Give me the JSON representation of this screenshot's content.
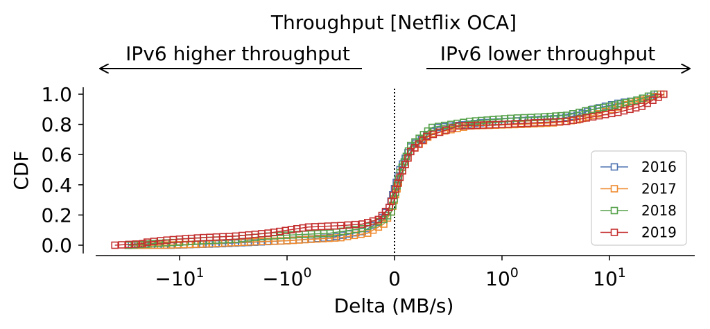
{
  "chart_data": {
    "type": "line",
    "title": "Throughput [Netflix OCA]",
    "xlabel": "Delta (MB/s)",
    "ylabel": "CDF",
    "xscale": "symlog",
    "xlim": [
      -40,
      40
    ],
    "ylim": [
      -0.03,
      1.05
    ],
    "x_ticks": [
      {
        "value": -10,
        "base": "−10",
        "exp": "1"
      },
      {
        "value": -1,
        "base": "−10",
        "exp": "0"
      },
      {
        "value": 0,
        "base": "0",
        "exp": ""
      },
      {
        "value": 1,
        "base": "10",
        "exp": "0"
      },
      {
        "value": 10,
        "base": "10",
        "exp": "1"
      }
    ],
    "y_ticks": [
      "0.0",
      "0.2",
      "0.4",
      "0.6",
      "0.8",
      "1.0"
    ],
    "annotations": {
      "left": "IPv6 higher throughput",
      "right": "IPv6 lower throughput"
    },
    "vline_x": 0,
    "legend_position": "lower-right",
    "series": [
      {
        "name": "2016",
        "color": "#4c72b0",
        "points": [
          [
            -28,
            0.0
          ],
          [
            -12,
            0.0
          ],
          [
            -7,
            0.005
          ],
          [
            -4,
            0.01
          ],
          [
            -2,
            0.02
          ],
          [
            -1,
            0.03
          ],
          [
            -0.6,
            0.05
          ],
          [
            -0.3,
            0.09
          ],
          [
            -0.15,
            0.15
          ],
          [
            -0.05,
            0.25
          ],
          [
            0.05,
            0.5
          ],
          [
            0.15,
            0.65
          ],
          [
            0.4,
            0.78
          ],
          [
            0.8,
            0.81
          ],
          [
            2,
            0.83
          ],
          [
            3.5,
            0.84
          ],
          [
            5,
            0.86
          ],
          [
            7,
            0.9
          ],
          [
            12,
            0.94
          ],
          [
            18,
            0.96
          ],
          [
            28,
            1.0
          ]
        ]
      },
      {
        "name": "2017",
        "color": "#ef8a2e",
        "points": [
          [
            -30,
            0.0
          ],
          [
            -15,
            0.0
          ],
          [
            -8,
            0.005
          ],
          [
            -5,
            0.01
          ],
          [
            -2.5,
            0.02
          ],
          [
            -1,
            0.03
          ],
          [
            -0.5,
            0.05
          ],
          [
            -0.25,
            0.08
          ],
          [
            -0.1,
            0.14
          ],
          [
            -0.03,
            0.22
          ],
          [
            0.05,
            0.45
          ],
          [
            0.15,
            0.62
          ],
          [
            0.35,
            0.74
          ],
          [
            0.7,
            0.79
          ],
          [
            1.5,
            0.8
          ],
          [
            3,
            0.81
          ],
          [
            5,
            0.83
          ],
          [
            8,
            0.87
          ],
          [
            14,
            0.93
          ],
          [
            22,
            0.97
          ],
          [
            30,
            1.0
          ]
        ]
      },
      {
        "name": "2018",
        "color": "#55a14a",
        "points": [
          [
            -30,
            0.0
          ],
          [
            -18,
            0.01
          ],
          [
            -10,
            0.02
          ],
          [
            -6,
            0.03
          ],
          [
            -3,
            0.04
          ],
          [
            -1.5,
            0.06
          ],
          [
            -0.6,
            0.08
          ],
          [
            -0.3,
            0.11
          ],
          [
            -0.1,
            0.17
          ],
          [
            -0.03,
            0.22
          ],
          [
            0.05,
            0.48
          ],
          [
            0.15,
            0.66
          ],
          [
            0.35,
            0.78
          ],
          [
            0.7,
            0.82
          ],
          [
            1.2,
            0.84
          ],
          [
            2.5,
            0.85
          ],
          [
            4,
            0.86
          ],
          [
            6,
            0.89
          ],
          [
            10,
            0.92
          ],
          [
            18,
            0.96
          ],
          [
            26,
            1.0
          ]
        ]
      },
      {
        "name": "2019",
        "color": "#c42f2f",
        "points": [
          [
            -40,
            0.0
          ],
          [
            -22,
            0.01
          ],
          [
            -20,
            0.02
          ],
          [
            -15,
            0.03
          ],
          [
            -10,
            0.04
          ],
          [
            -6,
            0.05
          ],
          [
            -3,
            0.06
          ],
          [
            -1.5,
            0.08
          ],
          [
            -0.8,
            0.12
          ],
          [
            -0.5,
            0.13
          ],
          [
            -0.3,
            0.14
          ],
          [
            -0.15,
            0.17
          ],
          [
            -0.05,
            0.25
          ],
          [
            0.05,
            0.45
          ],
          [
            0.15,
            0.62
          ],
          [
            0.3,
            0.72
          ],
          [
            0.6,
            0.79
          ],
          [
            1,
            0.8
          ],
          [
            2,
            0.81
          ],
          [
            4,
            0.82
          ],
          [
            7,
            0.85
          ],
          [
            12,
            0.88
          ],
          [
            20,
            0.92
          ],
          [
            32,
            1.0
          ]
        ]
      }
    ]
  }
}
